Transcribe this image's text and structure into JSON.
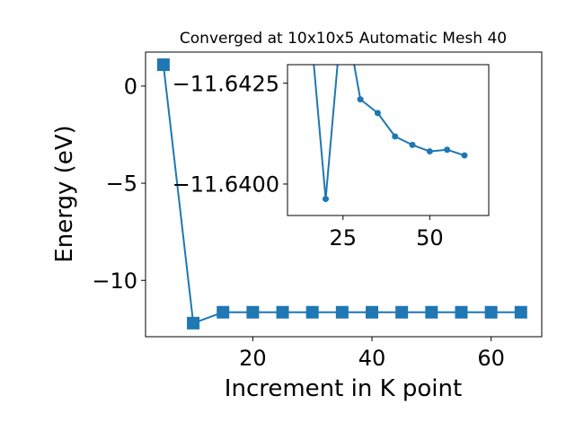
{
  "chart_data": [
    {
      "type": "line",
      "title": "Converged at 10x10x5 Automatic Mesh 40",
      "xlabel": "Increment in K point",
      "ylabel": "Energy (eV)",
      "xlim": [
        2,
        68.5
      ],
      "ylim": [
        -12.9,
        1.75
      ],
      "xticks": [
        20,
        40,
        60
      ],
      "xtick_labels": [
        "20",
        "40",
        "60"
      ],
      "yticks": [
        0,
        -5,
        -10
      ],
      "ytick_labels": [
        "0",
        "−5",
        "−10"
      ],
      "series": [
        {
          "marker": "square",
          "color": "#1f77b4",
          "x": [
            5,
            10,
            15,
            20,
            25,
            30,
            35,
            40,
            45,
            50,
            55,
            60,
            65
          ],
          "y": [
            1.1,
            -12.2,
            -11.64,
            -11.64,
            -11.64,
            -11.64,
            -11.64,
            -11.64,
            -11.64,
            -11.64,
            -11.64,
            -11.64,
            -11.64
          ]
        }
      ]
    },
    {
      "type": "line",
      "title": "",
      "xlabel": "",
      "ylabel": "",
      "xlim": [
        9,
        67
      ],
      "ylim": [
        -11.63922,
        -11.64296
      ],
      "xticks": [
        25,
        50
      ],
      "xtick_labels": [
        "25",
        "50"
      ],
      "yticks": [
        -11.6425,
        -11.64
      ],
      "ytick_labels": [
        "−11.6425",
        "−11.6400"
      ],
      "series": [
        {
          "marker": "circle",
          "color": "#1f77b4",
          "x": [
            15,
            20,
            25,
            30,
            35,
            40,
            45,
            50,
            55,
            60
          ],
          "y": [
            -11.6445,
            -11.63963,
            -11.6445,
            -11.6421,
            -11.64176,
            -11.64118,
            -11.64097,
            -11.64081,
            -11.64085,
            -11.64071
          ]
        }
      ]
    }
  ]
}
